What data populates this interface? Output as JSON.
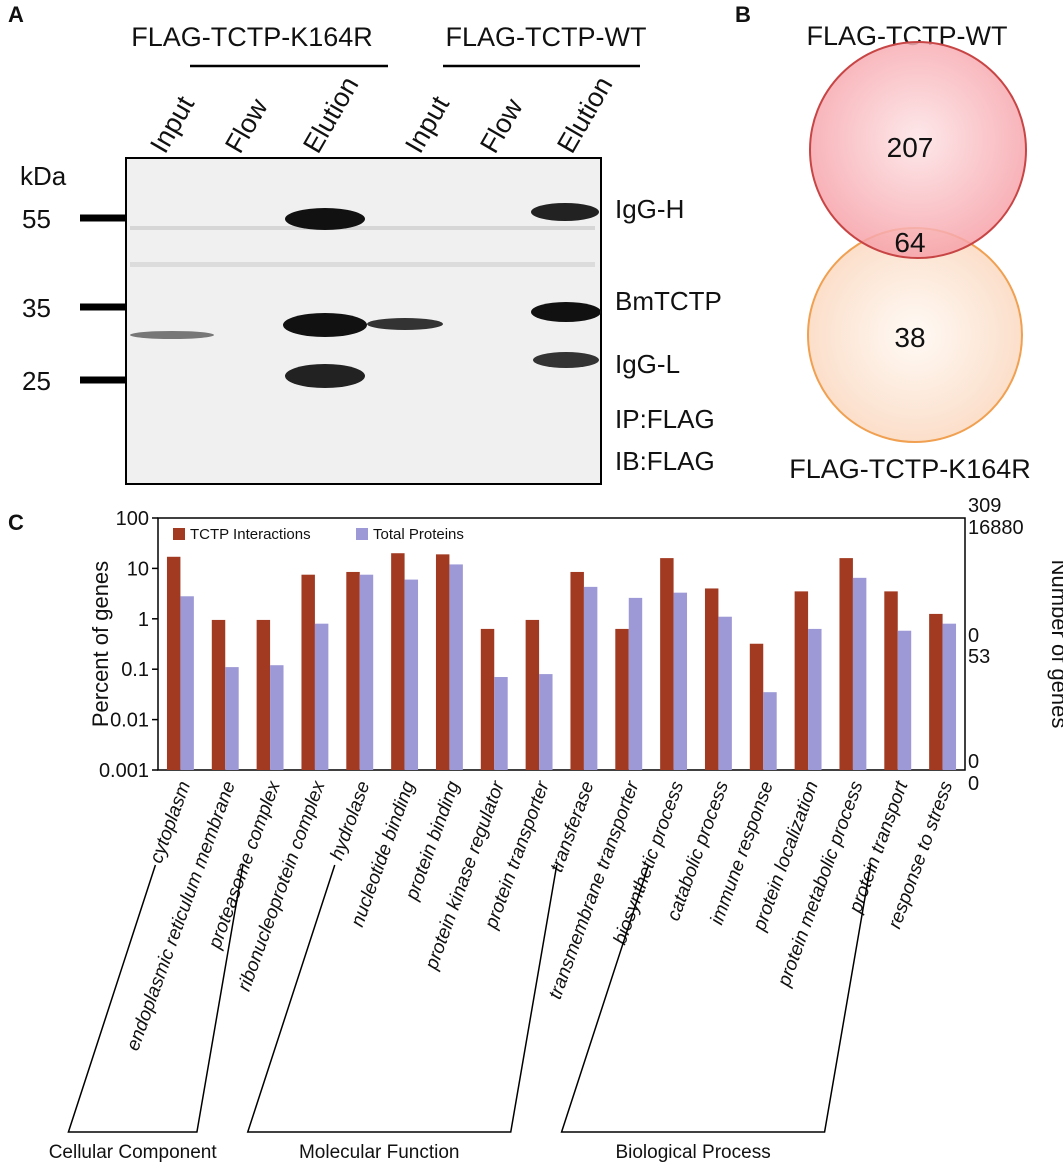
{
  "panel_a": {
    "label": "A",
    "groups": [
      "FLAG-TCTP-K164R",
      "FLAG-TCTP-WT"
    ],
    "lanes": [
      "Input",
      "Flow",
      "Elution",
      "Input",
      "Flow",
      "Elution"
    ],
    "unit": "kDa",
    "markers": [
      "55",
      "35",
      "25"
    ],
    "bands": [
      "IgG-H",
      "BmTCTP",
      "IgG-L"
    ],
    "ip": "IP:FLAG",
    "ib": "IB:FLAG"
  },
  "panel_b": {
    "label": "B",
    "set1": "FLAG-TCTP-WT",
    "set2": "FLAG-TCTP-K164R",
    "only1": "207",
    "both": "64",
    "only2": "38"
  },
  "panel_c_label": "C",
  "chart_data": {
    "type": "bar",
    "ylabel": "Percent of genes",
    "y2label": "Number of genes",
    "log": true,
    "ylim": [
      0.001,
      100
    ],
    "yticks": [
      0.001,
      0.01,
      0.1,
      1,
      10,
      100
    ],
    "categories": [
      "cytoplasm",
      "endoplasmic reticulum membrane",
      "proteasome complex",
      "ribonucleoprotein complex",
      "hydrolase",
      "nucleotide binding",
      "protein binding",
      "protein kinase regulator",
      "protein transporter",
      "transferase",
      "transmembrane transporter",
      "biosynthetic process",
      "catabolic process",
      "immune response",
      "protein localization",
      "protein metabolic process",
      "protein transport",
      "response to stress"
    ],
    "series": [
      {
        "name": "TCTP Interactions",
        "color": "#a23a22",
        "values": [
          17,
          0.95,
          0.95,
          7.5,
          8.5,
          20,
          19,
          0.63,
          0.95,
          8.5,
          0.63,
          16,
          4,
          0.32,
          3.5,
          16,
          3.5,
          1.25
        ]
      },
      {
        "name": "Total Proteins",
        "color": "#9d99d6",
        "values": [
          2.8,
          0.11,
          0.12,
          0.8,
          7.5,
          6,
          12,
          0.07,
          0.08,
          4.3,
          2.6,
          3.3,
          1.1,
          0.035,
          0.63,
          6.5,
          0.58,
          0.8
        ]
      }
    ],
    "right_axis_labels": [
      {
        "label": "309",
        "color": "#a23a22"
      },
      {
        "label": "16880",
        "color": "#9d99d6"
      },
      {
        "label": "0",
        "color": "#a23a22"
      },
      {
        "label": "53",
        "color": "#9d99d6"
      },
      {
        "label": "0",
        "color": "#a23a22"
      },
      {
        "label": "0",
        "color": "#9d99d6"
      }
    ],
    "groups": [
      "Cellular Component",
      "Molecular Function",
      "Biological Process"
    ]
  }
}
